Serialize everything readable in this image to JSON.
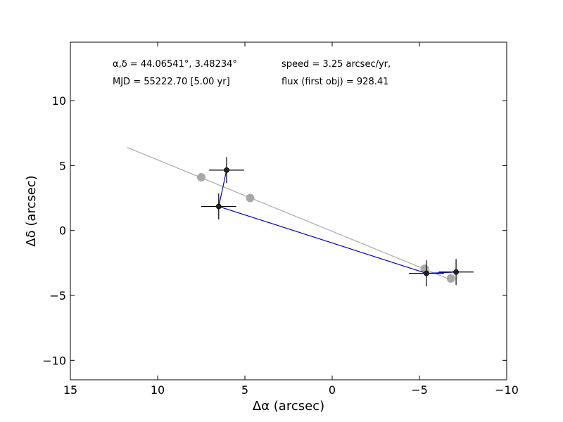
{
  "chart_data": {
    "type": "scatter",
    "title": "",
    "xlabel": "Δα (arcsec)",
    "ylabel": "Δδ (arcsec)",
    "xlim": [
      15,
      -10
    ],
    "ylim": [
      -11.5,
      14.5
    ],
    "x_inverted": true,
    "xticks": [
      15,
      10,
      5,
      0,
      -5,
      -10
    ],
    "yticks": [
      10,
      5,
      0,
      -5,
      -10
    ],
    "xtick_labels": [
      "15",
      "10",
      "5",
      "0",
      "−5",
      "−10"
    ],
    "ytick_labels": [
      "10",
      "5",
      "0",
      "−5",
      "−10"
    ],
    "grid": false,
    "annotations": {
      "coords": "α,δ = 44.06541°, 3.48234°",
      "speed": "speed = 3.25 arcsec/yr,",
      "mjd": "MJD = 55222.70 [5.00 yr]",
      "flux": "flux (first obj) = 928.41"
    },
    "model_line": {
      "color": "#a8a8a8",
      "x": [
        11.75,
        -6.7
      ],
      "y": [
        6.4,
        -3.75
      ]
    },
    "model_points": {
      "color": "#a8a8a8",
      "x": [
        7.5,
        4.7,
        -5.3,
        -6.8
      ],
      "y": [
        4.1,
        2.5,
        -2.95,
        -3.7
      ]
    },
    "observed_path": {
      "color": "#0000cc",
      "x": [
        6.05,
        6.5,
        -5.4,
        -7.1
      ],
      "y": [
        4.65,
        1.85,
        -3.3,
        -3.2
      ]
    },
    "observed_points": {
      "color": "#222222",
      "x": [
        6.05,
        6.5,
        -5.4,
        -7.1
      ],
      "y": [
        4.65,
        1.85,
        -3.3,
        -3.2
      ],
      "xerr": [
        1.0,
        1.0,
        1.0,
        1.0
      ],
      "yerr": [
        1.0,
        1.0,
        1.0,
        1.0
      ]
    }
  }
}
